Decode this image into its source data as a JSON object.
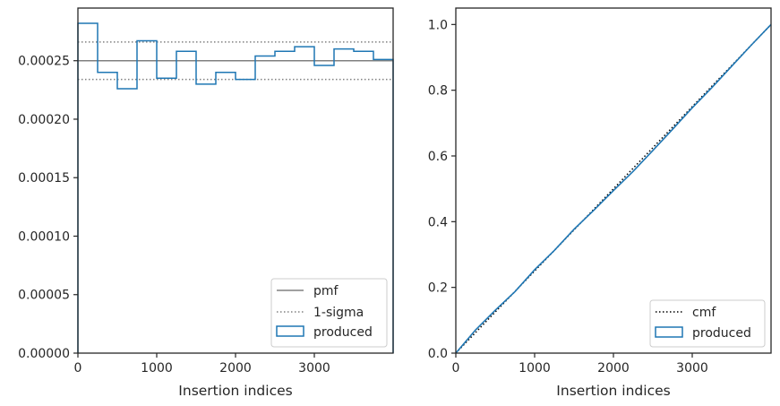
{
  "chart_data": [
    {
      "type": "step",
      "xlabel": "Insertion indices",
      "ylabel": "",
      "xlim": [
        0,
        4000
      ],
      "ylim": [
        0,
        0.000295
      ],
      "xticks": [
        0,
        1000,
        2000,
        3000
      ],
      "xtick_labels": [
        "0",
        "1000",
        "2000",
        "3000"
      ],
      "yticks": [
        0,
        5e-05,
        0.0001,
        0.00015,
        0.0002,
        0.00025
      ],
      "ytick_labels": [
        "0.00000",
        "0.00005",
        "0.00010",
        "0.00015",
        "0.00020",
        "0.00025"
      ],
      "pmf": 0.00025,
      "sigma_band": [
        0.000234,
        0.000266
      ],
      "bin_edges": [
        0,
        250,
        500,
        750,
        1000,
        1250,
        1500,
        1750,
        2000,
        2250,
        2500,
        2750,
        3000,
        3250,
        3500,
        3750,
        4000
      ],
      "produced": [
        0.000282,
        0.00024,
        0.000226,
        0.000267,
        0.000235,
        0.000258,
        0.00023,
        0.00024,
        0.000234,
        0.000254,
        0.000258,
        0.000262,
        0.000246,
        0.00026,
        0.000258,
        0.000251
      ],
      "legend_position": "lower-right",
      "legend": [
        "pmf",
        "1-sigma",
        "produced"
      ],
      "colors": {
        "pmf": "#808080",
        "sigma": "#808080",
        "produced": "#1f77b4"
      }
    },
    {
      "type": "line",
      "xlabel": "Insertion indices",
      "ylabel": "",
      "xlim": [
        0,
        4000
      ],
      "ylim": [
        0,
        1.05
      ],
      "xticks": [
        0,
        1000,
        2000,
        3000
      ],
      "xtick_labels": [
        "0",
        "1000",
        "2000",
        "3000"
      ],
      "yticks": [
        0,
        0.2,
        0.4,
        0.6,
        0.8,
        1.0
      ],
      "ytick_labels": [
        "0.0",
        "0.2",
        "0.4",
        "0.6",
        "0.8",
        "1.0"
      ],
      "cmf": {
        "x": [
          0,
          4000
        ],
        "y": [
          0,
          1.0
        ]
      },
      "produced": {
        "x": [
          0,
          250,
          500,
          750,
          1000,
          1250,
          1500,
          1750,
          2000,
          2250,
          2500,
          2750,
          3000,
          3250,
          3500,
          3750,
          4000
        ],
        "y": [
          0,
          0.0705,
          0.1305,
          0.187,
          0.2538,
          0.3125,
          0.377,
          0.4345,
          0.4945,
          0.553,
          0.6165,
          0.681,
          0.7465,
          0.808,
          0.873,
          0.9375,
          1.0
        ]
      },
      "legend_position": "lower-right",
      "legend": [
        "cmf",
        "produced"
      ],
      "colors": {
        "cmf": "#000000",
        "produced": "#1f77b4"
      }
    }
  ]
}
